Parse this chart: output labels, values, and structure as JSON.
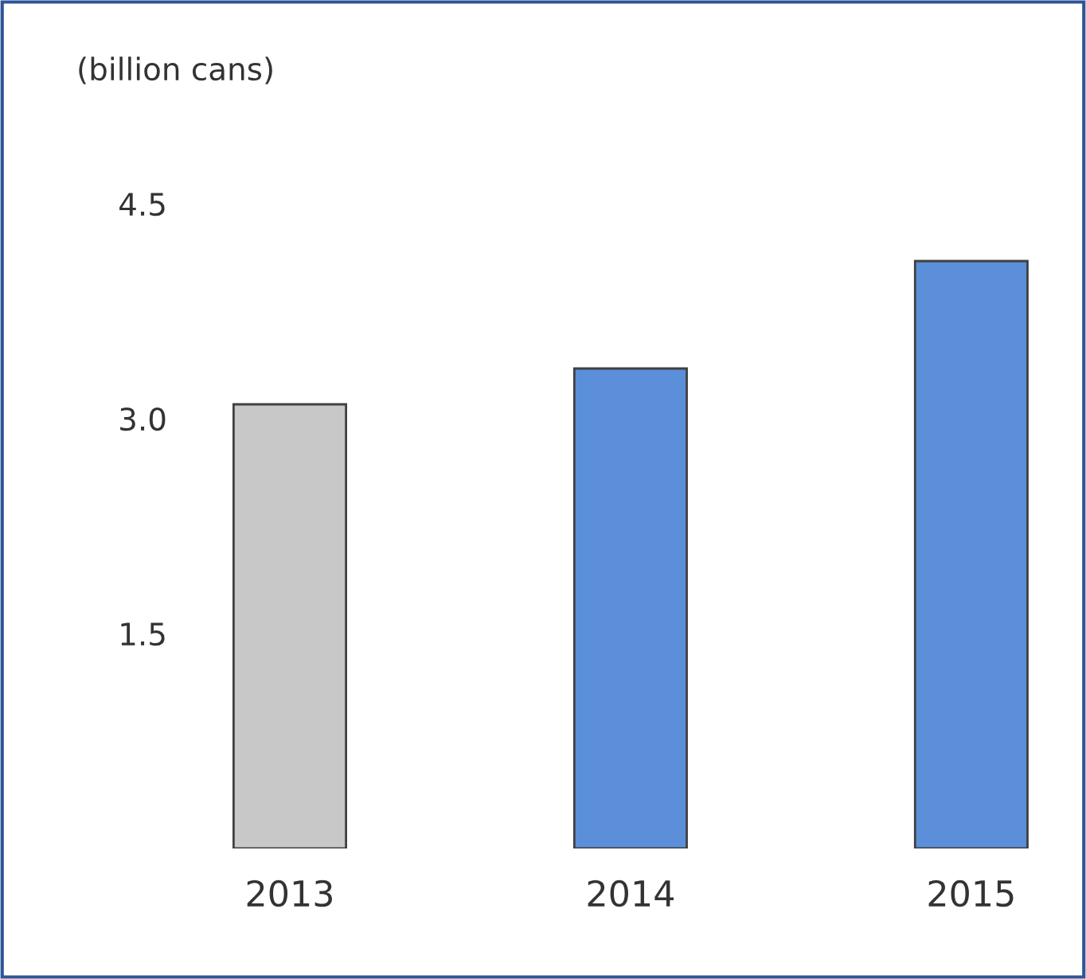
{
  "chart_data": {
    "type": "bar",
    "ylabel": "(billion cans)",
    "categories": [
      "2013",
      "2014",
      "2015"
    ],
    "values": [
      3.1,
      3.35,
      4.1
    ],
    "colors": [
      "#c8c8c8",
      "#5b8fd9",
      "#5b8fd9"
    ],
    "ylim": [
      0,
      4.5
    ],
    "yticks": [
      {
        "value": 1.5,
        "label": "1.5"
      },
      {
        "value": 3,
        "label": "3.0"
      },
      {
        "value": 4.5,
        "label": "4.5"
      }
    ],
    "grid": false,
    "legend": false
  }
}
